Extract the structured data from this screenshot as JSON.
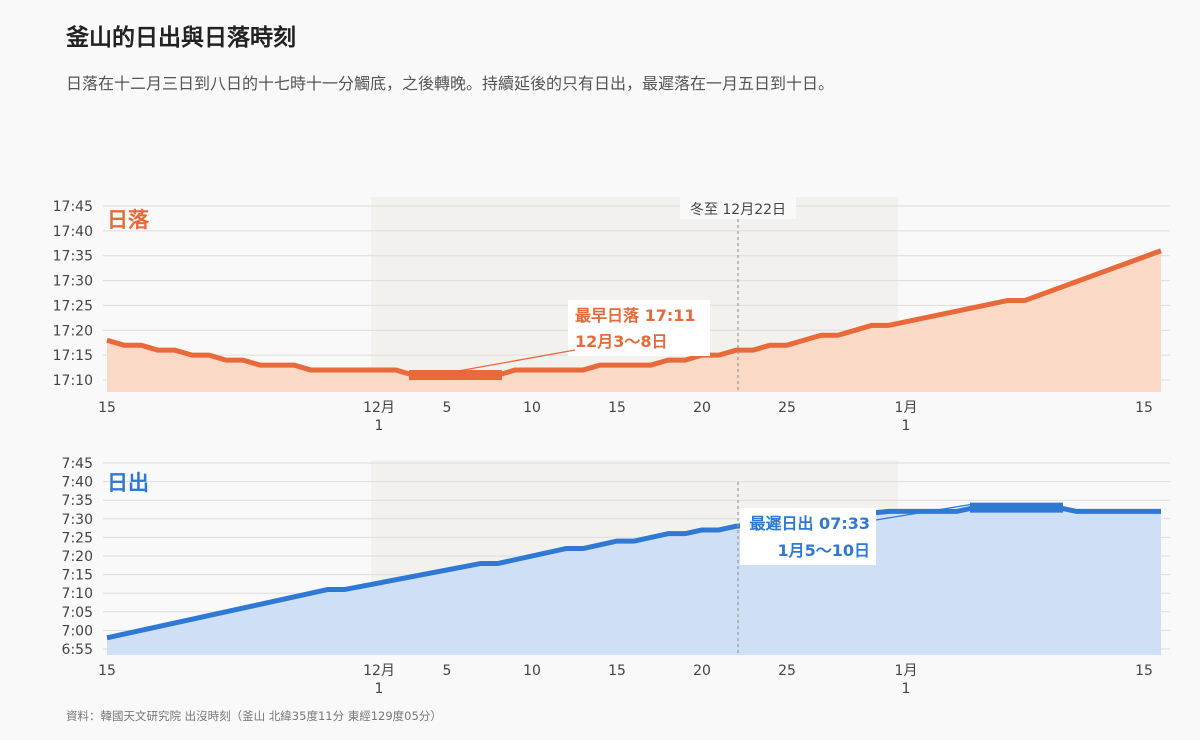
{
  "title": "釜山的日出與日落時刻",
  "subtitle": "日落在十二月三日到八日的十七時十一分觸底，之後轉晚。持續延後的只有日出，最遲落在一月五日到十日。",
  "source": "資料：韓國天文研究院 出沒時刻（釜山 北緯35度11分 東經129度05分）",
  "colors": {
    "sunset_line": "#e8693a",
    "sunset_fill": "#fbd9c7",
    "sunrise_line": "#2f79d4",
    "sunrise_fill": "#cfe0f6",
    "band": "#f3f1ee"
  },
  "chart_data": [
    {
      "type": "area",
      "series_label": "日落",
      "x_range": [
        "2021-11-15",
        "2022-01-15"
      ],
      "x_ticks": [
        {
          "date": "2021-11-15",
          "label": "15"
        },
        {
          "date": "2021-12-01",
          "label": "12月",
          "sub": "1"
        },
        {
          "date": "2021-12-05",
          "label": "5"
        },
        {
          "date": "2021-12-10",
          "label": "10"
        },
        {
          "date": "2021-12-15",
          "label": "15"
        },
        {
          "date": "2021-12-20",
          "label": "20"
        },
        {
          "date": "2021-12-25",
          "label": "25"
        },
        {
          "date": "2022-01-01",
          "label": "1月",
          "sub": "1"
        },
        {
          "date": "2022-01-15",
          "label": "15"
        }
      ],
      "y_ticks": [
        "17:10",
        "17:15",
        "17:20",
        "17:25",
        "17:30",
        "17:35",
        "17:40",
        "17:45"
      ],
      "y_range": [
        "17:07",
        "17:46"
      ],
      "shaded_band": [
        "2021-12-01",
        "2022-01-01"
      ],
      "reference_line": {
        "date": "2021-12-22",
        "label": "冬至 12月22日"
      },
      "points": [
        {
          "x": "2021-11-15",
          "y": "17:18"
        },
        {
          "x": "2021-11-16",
          "y": "17:17"
        },
        {
          "x": "2021-11-17",
          "y": "17:17"
        },
        {
          "x": "2021-11-18",
          "y": "17:16"
        },
        {
          "x": "2021-11-19",
          "y": "17:16"
        },
        {
          "x": "2021-11-20",
          "y": "17:15"
        },
        {
          "x": "2021-11-21",
          "y": "17:15"
        },
        {
          "x": "2021-11-22",
          "y": "17:14"
        },
        {
          "x": "2021-11-23",
          "y": "17:14"
        },
        {
          "x": "2021-11-24",
          "y": "17:13"
        },
        {
          "x": "2021-11-26",
          "y": "17:13"
        },
        {
          "x": "2021-11-27",
          "y": "17:12"
        },
        {
          "x": "2021-12-02",
          "y": "17:12"
        },
        {
          "x": "2021-12-03",
          "y": "17:11"
        },
        {
          "x": "2021-12-08",
          "y": "17:11"
        },
        {
          "x": "2021-12-09",
          "y": "17:12"
        },
        {
          "x": "2021-12-13",
          "y": "17:12"
        },
        {
          "x": "2021-12-14",
          "y": "17:13"
        },
        {
          "x": "2021-12-17",
          "y": "17:13"
        },
        {
          "x": "2021-12-18",
          "y": "17:14"
        },
        {
          "x": "2021-12-19",
          "y": "17:14"
        },
        {
          "x": "2021-12-20",
          "y": "17:15"
        },
        {
          "x": "2021-12-21",
          "y": "17:15"
        },
        {
          "x": "2021-12-22",
          "y": "17:16"
        },
        {
          "x": "2021-12-23",
          "y": "17:16"
        },
        {
          "x": "2021-12-24",
          "y": "17:17"
        },
        {
          "x": "2021-12-25",
          "y": "17:17"
        },
        {
          "x": "2021-12-27",
          "y": "17:19"
        },
        {
          "x": "2021-12-28",
          "y": "17:19"
        },
        {
          "x": "2021-12-30",
          "y": "17:21"
        },
        {
          "x": "2021-12-31",
          "y": "17:21"
        },
        {
          "x": "2022-01-07",
          "y": "17:26"
        },
        {
          "x": "2022-01-08",
          "y": "17:26"
        },
        {
          "x": "2022-01-16",
          "y": "17:36"
        }
      ],
      "highlight": {
        "from": "2021-12-03",
        "to": "2021-12-08",
        "y": "17:11"
      },
      "annotation": {
        "line1": "最早日落 17:11",
        "line2": "12月3～8日"
      }
    },
    {
      "type": "area",
      "series_label": "日出",
      "x_range": [
        "2021-11-15",
        "2022-01-15"
      ],
      "x_ticks": [
        {
          "date": "2021-11-15",
          "label": "15"
        },
        {
          "date": "2021-12-01",
          "label": "12月",
          "sub": "1"
        },
        {
          "date": "2021-12-05",
          "label": "5"
        },
        {
          "date": "2021-12-10",
          "label": "10"
        },
        {
          "date": "2021-12-15",
          "label": "15"
        },
        {
          "date": "2021-12-20",
          "label": "20"
        },
        {
          "date": "2021-12-25",
          "label": "25"
        },
        {
          "date": "2022-01-01",
          "label": "1月",
          "sub": "1"
        },
        {
          "date": "2022-01-15",
          "label": "15"
        }
      ],
      "y_ticks": [
        "6:55",
        "7:00",
        "7:05",
        "7:10",
        "7:15",
        "7:20",
        "7:25",
        "7:30",
        "7:35",
        "7:40",
        "7:45"
      ],
      "y_range": [
        "6:55",
        "7:45"
      ],
      "shaded_band": [
        "2021-12-01",
        "2022-01-01"
      ],
      "reference_line": {
        "date": "2021-12-22",
        "label": "冬至 12月22日"
      },
      "points": [
        {
          "x": "2021-11-15",
          "y": "6:58"
        },
        {
          "x": "2021-11-28",
          "y": "7:11"
        },
        {
          "x": "2021-11-29",
          "y": "7:11"
        },
        {
          "x": "2021-12-07",
          "y": "7:18"
        },
        {
          "x": "2021-12-08",
          "y": "7:18"
        },
        {
          "x": "2021-12-12",
          "y": "7:22"
        },
        {
          "x": "2021-12-13",
          "y": "7:22"
        },
        {
          "x": "2021-12-15",
          "y": "7:24"
        },
        {
          "x": "2021-12-16",
          "y": "7:24"
        },
        {
          "x": "2021-12-18",
          "y": "7:26"
        },
        {
          "x": "2021-12-19",
          "y": "7:26"
        },
        {
          "x": "2021-12-20",
          "y": "7:27"
        },
        {
          "x": "2021-12-21",
          "y": "7:27"
        },
        {
          "x": "2021-12-22",
          "y": "7:28"
        },
        {
          "x": "2021-12-31",
          "y": "7:32"
        },
        {
          "x": "2022-01-04",
          "y": "7:32"
        },
        {
          "x": "2022-01-05",
          "y": "7:33"
        },
        {
          "x": "2022-01-10",
          "y": "7:33"
        },
        {
          "x": "2022-01-11",
          "y": "7:32"
        },
        {
          "x": "2022-01-16",
          "y": "7:32"
        }
      ],
      "highlight": {
        "from": "2022-01-05",
        "to": "2022-01-10",
        "y": "7:33"
      },
      "annotation": {
        "line1": "最遲日出 07:33",
        "line2": "1月5～10日"
      }
    }
  ]
}
